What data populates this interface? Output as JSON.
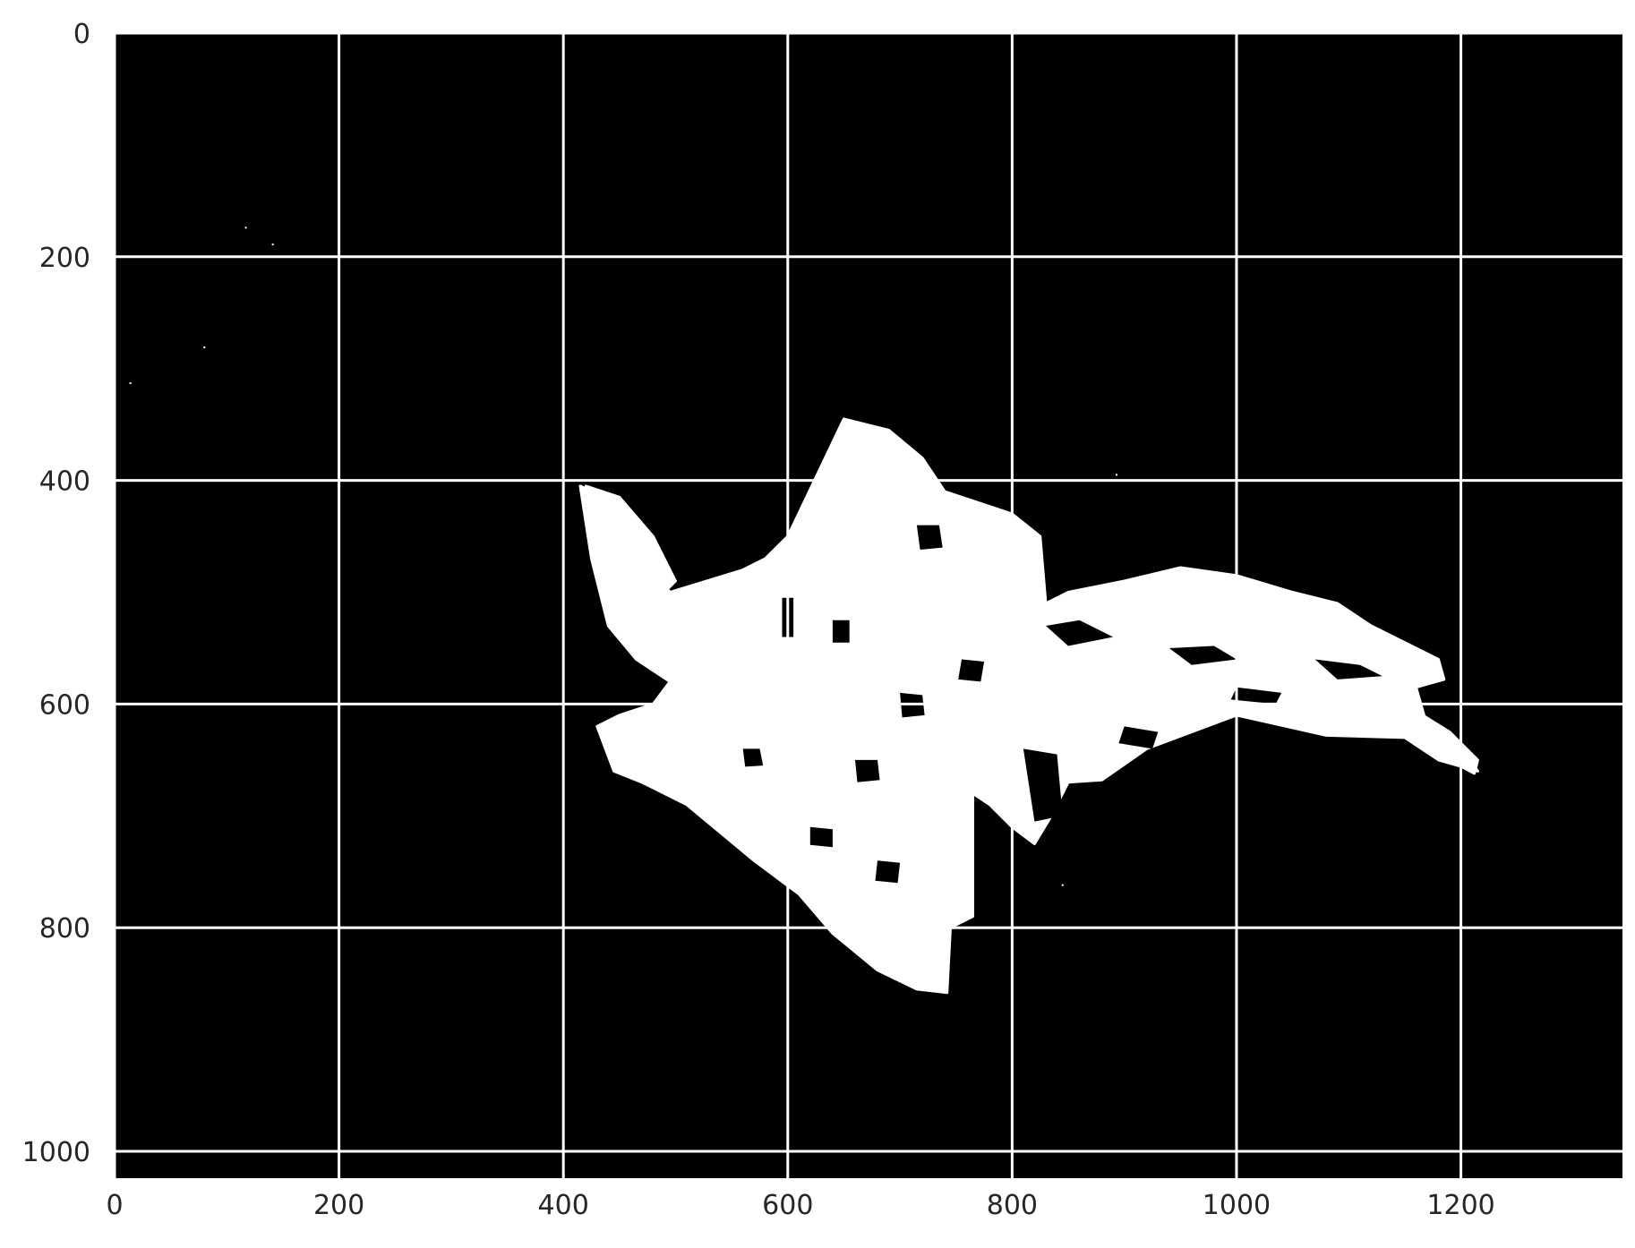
{
  "chart_data": {
    "type": "heatmap",
    "subtype": "binary-image",
    "title": "",
    "xlabel": "",
    "ylabel": "",
    "xlim": [
      0,
      1344
    ],
    "ylim": [
      1024,
      0
    ],
    "y_axis_inverted": true,
    "grid": true,
    "grid_color": "#ffffff",
    "background_color": "#000000",
    "foreground_color": "#ffffff",
    "xticks": [
      0,
      200,
      400,
      600,
      800,
      1000,
      1200
    ],
    "yticks": [
      0,
      200,
      400,
      600,
      800,
      1000
    ],
    "xtick_labels": [
      "0",
      "200",
      "400",
      "600",
      "800",
      "1000",
      "1200"
    ],
    "ytick_labels": [
      "0",
      "200",
      "400",
      "600",
      "800",
      "1000"
    ],
    "foreground_regions": [
      {
        "name": "central-mass",
        "polygon": [
          [
            415,
            405
          ],
          [
            445,
            420
          ],
          [
            470,
            465
          ],
          [
            495,
            500
          ],
          [
            560,
            480
          ],
          [
            580,
            470
          ],
          [
            600,
            450
          ],
          [
            650,
            345
          ],
          [
            690,
            355
          ],
          [
            720,
            380
          ],
          [
            740,
            410
          ],
          [
            800,
            430
          ],
          [
            825,
            450
          ],
          [
            830,
            510
          ],
          [
            850,
            500
          ],
          [
            900,
            490
          ],
          [
            950,
            478
          ],
          [
            1000,
            485
          ],
          [
            1050,
            500
          ],
          [
            1090,
            510
          ],
          [
            1120,
            530
          ],
          [
            1150,
            545
          ],
          [
            1180,
            560
          ],
          [
            1185,
            578
          ],
          [
            1160,
            585
          ],
          [
            1170,
            620
          ],
          [
            1200,
            640
          ],
          [
            1215,
            660
          ],
          [
            1180,
            650
          ],
          [
            1150,
            630
          ],
          [
            1080,
            628
          ],
          [
            1000,
            610
          ],
          [
            920,
            640
          ],
          [
            880,
            668
          ],
          [
            850,
            670
          ],
          [
            835,
            700
          ],
          [
            820,
            725
          ],
          [
            800,
            710
          ],
          [
            780,
            690
          ],
          [
            765,
            680
          ],
          [
            765,
            790
          ],
          [
            745,
            800
          ],
          [
            742,
            858
          ],
          [
            715,
            855
          ],
          [
            680,
            838
          ],
          [
            640,
            805
          ],
          [
            610,
            770
          ],
          [
            570,
            740
          ],
          [
            510,
            690
          ],
          [
            470,
            670
          ],
          [
            445,
            660
          ],
          [
            430,
            620
          ],
          [
            450,
            610
          ],
          [
            480,
            600
          ],
          [
            495,
            580
          ],
          [
            465,
            560
          ],
          [
            440,
            530
          ],
          [
            425,
            470
          ]
        ]
      },
      {
        "name": "right-streak",
        "polygon": [
          [
            1150,
            600
          ],
          [
            1190,
            625
          ],
          [
            1215,
            650
          ],
          [
            1212,
            662
          ],
          [
            1180,
            645
          ],
          [
            1150,
            620
          ]
        ]
      },
      {
        "name": "left-arm",
        "polygon": [
          [
            420,
            405
          ],
          [
            450,
            415
          ],
          [
            480,
            450
          ],
          [
            500,
            490
          ],
          [
            490,
            500
          ],
          [
            470,
            480
          ],
          [
            445,
            460
          ],
          [
            425,
            440
          ]
        ]
      }
    ],
    "foreground_holes": [
      {
        "polygon": [
          [
            595,
            505
          ],
          [
            605,
            505
          ],
          [
            605,
            540
          ],
          [
            595,
            540
          ]
        ]
      },
      {
        "polygon": [
          [
            715,
            440
          ],
          [
            735,
            440
          ],
          [
            738,
            460
          ],
          [
            718,
            462
          ]
        ]
      },
      {
        "polygon": [
          [
            640,
            525
          ],
          [
            655,
            525
          ],
          [
            655,
            545
          ],
          [
            640,
            545
          ]
        ]
      },
      {
        "polygon": [
          [
            830,
            530
          ],
          [
            860,
            525
          ],
          [
            890,
            540
          ],
          [
            850,
            548
          ]
        ]
      },
      {
        "polygon": [
          [
            940,
            550
          ],
          [
            980,
            548
          ],
          [
            1000,
            560
          ],
          [
            960,
            565
          ]
        ]
      },
      {
        "polygon": [
          [
            1070,
            560
          ],
          [
            1110,
            565
          ],
          [
            1130,
            575
          ],
          [
            1090,
            578
          ]
        ]
      },
      {
        "polygon": [
          [
            810,
            640
          ],
          [
            840,
            645
          ],
          [
            845,
            700
          ],
          [
            820,
            705
          ]
        ]
      },
      {
        "polygon": [
          [
            700,
            590
          ],
          [
            720,
            592
          ],
          [
            722,
            610
          ],
          [
            702,
            612
          ]
        ]
      },
      {
        "polygon": [
          [
            660,
            650
          ],
          [
            680,
            650
          ],
          [
            682,
            668
          ],
          [
            662,
            670
          ]
        ]
      },
      {
        "polygon": [
          [
            900,
            620
          ],
          [
            930,
            625
          ],
          [
            925,
            640
          ],
          [
            895,
            635
          ]
        ]
      },
      {
        "polygon": [
          [
            1000,
            585
          ],
          [
            1040,
            590
          ],
          [
            1035,
            600
          ],
          [
            995,
            596
          ]
        ]
      },
      {
        "polygon": [
          [
            560,
            640
          ],
          [
            575,
            640
          ],
          [
            578,
            655
          ],
          [
            562,
            656
          ]
        ]
      },
      {
        "polygon": [
          [
            620,
            710
          ],
          [
            640,
            712
          ],
          [
            640,
            728
          ],
          [
            620,
            726
          ]
        ]
      },
      {
        "polygon": [
          [
            680,
            740
          ],
          [
            700,
            742
          ],
          [
            698,
            760
          ],
          [
            678,
            758
          ]
        ]
      },
      {
        "polygon": [
          [
            755,
            560
          ],
          [
            775,
            562
          ],
          [
            772,
            580
          ],
          [
            752,
            578
          ]
        ]
      }
    ],
    "noise_points": [
      [
        117,
        174
      ],
      [
        141,
        189
      ],
      [
        80,
        281
      ],
      [
        14,
        313
      ],
      [
        893,
        395
      ],
      [
        845,
        762
      ]
    ]
  }
}
